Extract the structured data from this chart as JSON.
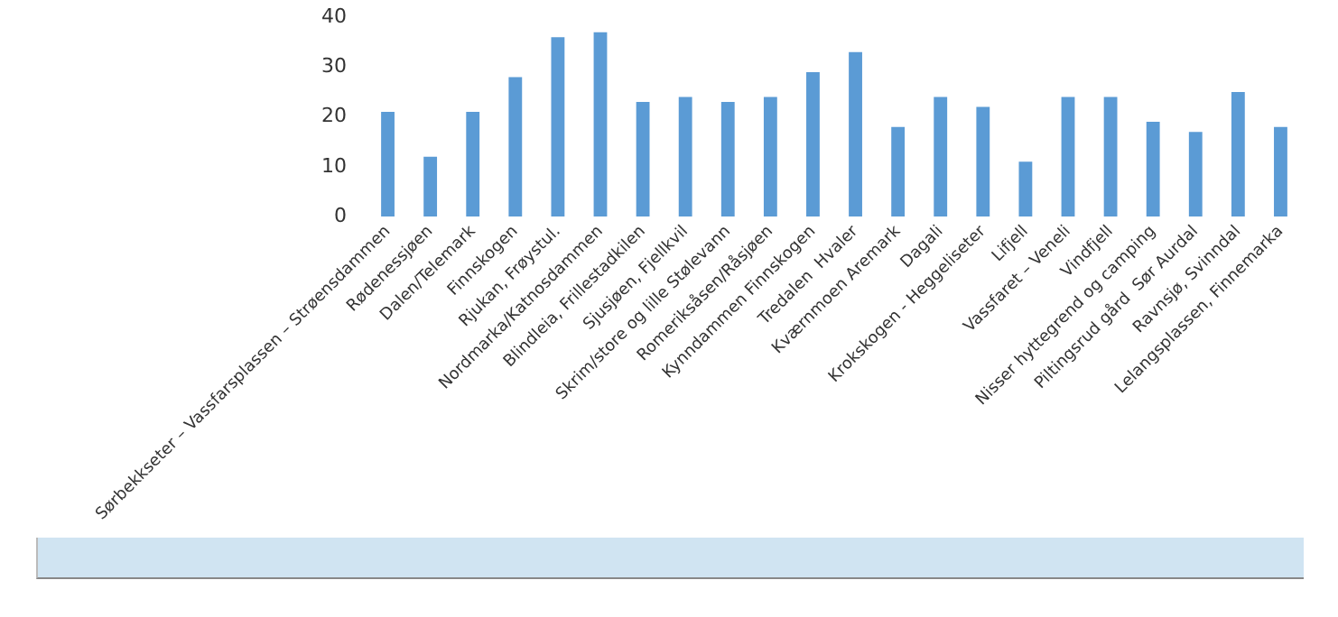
{
  "chart_data": {
    "type": "bar",
    "categories": [
      "Sørbekkseter – Vassfarsplassen – Strøensdammen",
      "Rødenessjøen",
      "Dalen/Telemark",
      "Finnskogen",
      "Rjukan, Frøystul.",
      "Nordmarka/Katnosdammen",
      "Blindleia, Frillestadkilen",
      "Sjusjøen, Fjellkvil",
      "Skrim/store og lille Stølevann",
      "Romeriksåsen/Råsjøen",
      "Kynndammen Finnskogen",
      "Tredalen  Hvaler",
      "Kværnmoen Aremark",
      "Dagali",
      "Krokskogen - Heggeliseter",
      "Lifjell",
      "Vassfaret – Veneli",
      "Vindfjell",
      "Nisser hyttegrend og camping",
      "Piltingsrud gård  Sør Aurdal",
      "Ravnsjø, Svinndal",
      "Lelangsplassen, Finnemarka"
    ],
    "values": [
      21,
      12,
      21,
      28,
      36,
      37,
      23,
      24,
      23,
      24,
      29,
      33,
      18,
      24,
      22,
      11,
      24,
      24,
      19,
      17,
      25,
      18
    ],
    "color": "#5b9bd5",
    "ylim": [
      0,
      40
    ],
    "yticks": [
      0,
      10,
      20,
      30,
      40
    ],
    "grid": false
  }
}
